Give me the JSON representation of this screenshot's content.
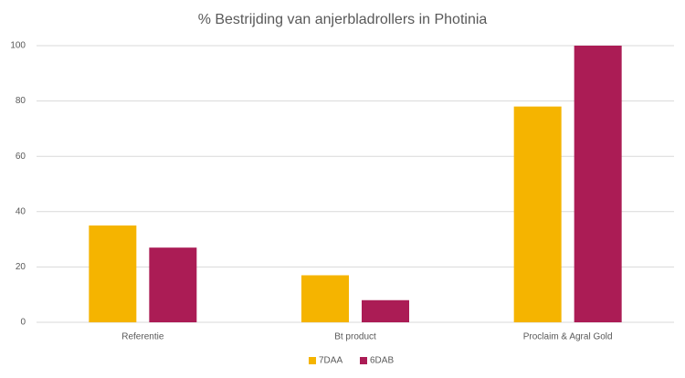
{
  "chart_data": {
    "type": "bar",
    "title": "% Bestrijding van anjerbladrollers in Photinia",
    "categories": [
      "Referentie",
      "Bt product",
      "Proclaim & Agral Gold"
    ],
    "series": [
      {
        "name": "7DAA",
        "color": "#f5b400",
        "values": [
          35,
          17,
          78
        ]
      },
      {
        "name": "6DAB",
        "color": "#ab1c55",
        "values": [
          27,
          8,
          100
        ]
      }
    ],
    "ylim": [
      0,
      100
    ],
    "yticks": [
      0,
      20,
      40,
      60,
      80,
      100
    ],
    "grid": true,
    "legend": "bottom"
  }
}
